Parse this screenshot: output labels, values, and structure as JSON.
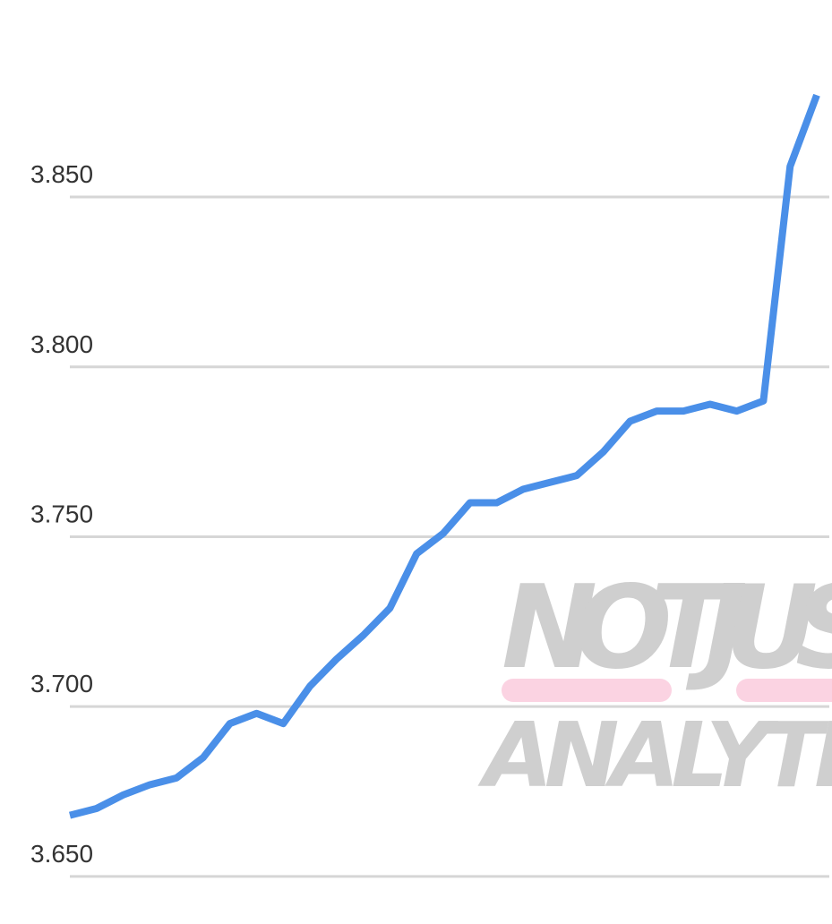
{
  "chart_data": {
    "type": "line",
    "watermark": [
      "NOTJUS",
      "ANALYTIC"
    ],
    "categories": [
      null,
      null,
      null,
      null,
      null,
      null,
      null,
      null,
      null,
      null,
      null,
      null,
      null,
      null,
      null,
      null,
      null,
      null,
      null,
      null,
      null,
      null,
      null,
      null,
      null,
      null,
      null,
      null,
      null
    ],
    "series": [
      {
        "color": "#4a8fe8",
        "values": [
          3.668,
          3.67,
          3.674,
          3.677,
          3.679,
          3.685,
          3.695,
          3.698,
          3.695,
          3.706,
          3.714,
          3.721,
          3.729,
          3.745,
          3.751,
          3.76,
          3.76,
          3.764,
          3.766,
          3.768,
          3.775,
          3.784,
          3.787,
          3.787,
          3.789,
          3.787,
          3.79,
          3.859,
          3.88
        ]
      }
    ],
    "ylim": [
      3.636,
      3.908
    ],
    "yticks": [
      {
        "value": 3.65,
        "label": "3.650"
      },
      {
        "value": 3.7,
        "label": "3.700"
      },
      {
        "value": 3.75,
        "label": "3.750"
      },
      {
        "value": 3.8,
        "label": "3.800"
      },
      {
        "value": 3.85,
        "label": "3.850"
      }
    ],
    "grid": true
  }
}
